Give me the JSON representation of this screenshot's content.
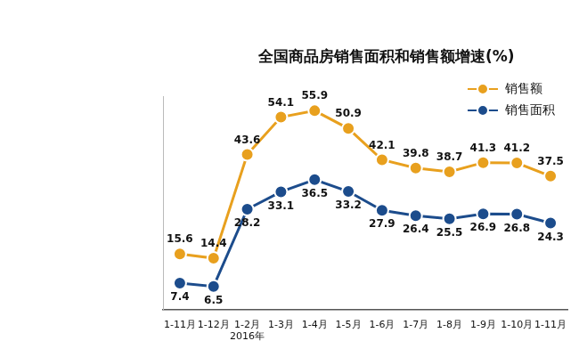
{
  "chart_data": {
    "type": "line",
    "title": "全国商品房销售面积和销售额增速(%)",
    "categories": [
      "1-11月",
      "1-12月",
      [
        "1-2月",
        "2016年"
      ],
      "1-3月",
      "1-4月",
      "1-5月",
      "1-6月",
      "1-7月",
      "1-8月",
      "1-9月",
      "1-10月",
      "1-11月"
    ],
    "series": [
      {
        "name": "销售额",
        "color": "#e8a01e",
        "marker": "circle",
        "values": [
          15.6,
          14.4,
          43.6,
          54.1,
          55.9,
          50.9,
          42.1,
          39.8,
          38.7,
          41.3,
          41.2,
          37.5
        ]
      },
      {
        "name": "销售面积",
        "color": "#1c4c8c",
        "marker": "circle",
        "values": [
          7.4,
          6.5,
          28.2,
          33.1,
          36.5,
          33.2,
          27.9,
          26.4,
          25.5,
          26.9,
          26.8,
          24.3
        ]
      }
    ],
    "ylim": [
      0,
      60
    ],
    "grid": false,
    "legend": "top-right",
    "data_labels": true,
    "tick_labels": "x"
  }
}
